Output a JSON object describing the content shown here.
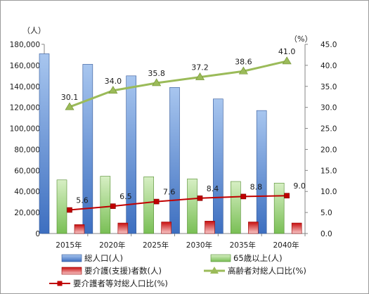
{
  "chart_data": {
    "type": "bar",
    "categories": [
      "2015年",
      "2020年",
      "2025年",
      "2030年",
      "2035年",
      "2040年"
    ],
    "left_axis": {
      "unit": "（人）",
      "ylim": [
        0,
        180000
      ],
      "ticks": [
        "0",
        "20,000",
        "40,000",
        "60,000",
        "80,000",
        "100,000",
        "120,000",
        "140,000",
        "160,000",
        "180,000"
      ]
    },
    "right_axis": {
      "unit": "（%）",
      "ylim": [
        0,
        45
      ],
      "ticks": [
        "0.0",
        "5.0",
        "10.0",
        "15.0",
        "20.0",
        "25.0",
        "30.0",
        "35.0",
        "40.0",
        "45.0"
      ]
    },
    "series": [
      {
        "name": "総人口(人)",
        "type": "bar",
        "axis": "left",
        "color": "#7ea6e0",
        "values": [
          171000,
          161000,
          150000,
          139000,
          128000,
          117000
        ]
      },
      {
        "name": "65歳以上(人)",
        "type": "bar",
        "axis": "left",
        "color": "#8ccf6a",
        "values": [
          51000,
          54500,
          54000,
          52000,
          49500,
          48000
        ]
      },
      {
        "name": "要介護(支援)者数(人)",
        "type": "bar",
        "axis": "left",
        "color": "#e03030",
        "values": [
          8500,
          10000,
          11000,
          11800,
          11000,
          10000
        ]
      },
      {
        "name": "高齢者対総人口比(%)",
        "type": "line",
        "axis": "right",
        "color": "#9bbb59",
        "marker": "triangle",
        "values": [
          30.1,
          34.0,
          35.8,
          37.2,
          38.6,
          41.0
        ]
      },
      {
        "name": "要介護者等対総人口比(%)",
        "type": "line",
        "axis": "right",
        "color": "#c00000",
        "marker": "square",
        "values": [
          5.6,
          6.5,
          7.6,
          8.4,
          8.8,
          9.0
        ]
      }
    ],
    "data_labels": {
      "高齢者対総人口比(%)": [
        "30.1",
        "34.0",
        "35.8",
        "37.2",
        "38.6",
        "41.0"
      ],
      "要介護者等対総人口比(%)": [
        "5.6",
        "6.5",
        "7.6",
        "8.4",
        "8.8",
        "9.0"
      ]
    },
    "grid": false,
    "legend_position": "bottom"
  }
}
